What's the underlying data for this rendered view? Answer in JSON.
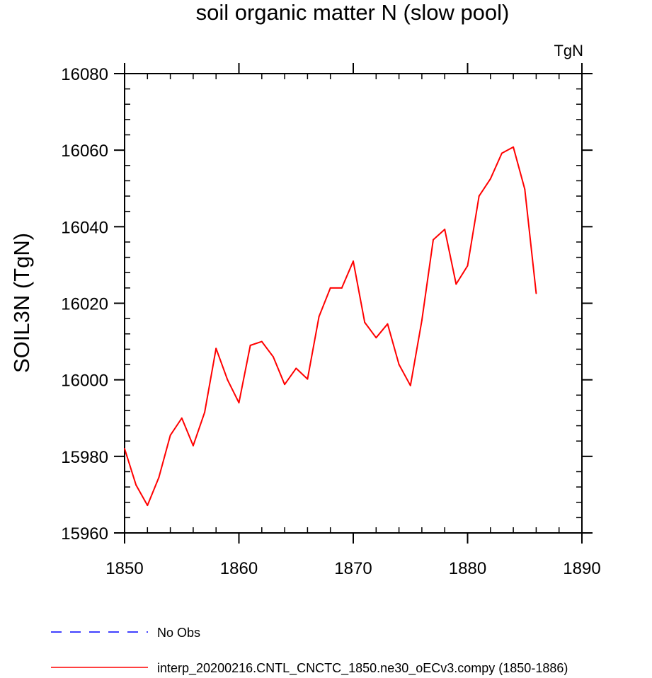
{
  "chart_data": {
    "type": "line",
    "title": "soil organic matter N (slow pool)",
    "units_label": "TgN",
    "ylabel": "SOIL3N  (TgN)",
    "xlabel": "",
    "xlim": [
      1850,
      1890
    ],
    "ylim": [
      15960,
      16080
    ],
    "x_ticks": [
      1850,
      1860,
      1870,
      1880,
      1890
    ],
    "y_ticks": [
      15960,
      15980,
      16000,
      16020,
      16040,
      16060,
      16080
    ],
    "x_tick_labels": [
      "1850",
      "1860",
      "1870",
      "1880",
      "1890"
    ],
    "y_tick_labels": [
      "15960",
      "15980",
      "16000",
      "16020",
      "16040",
      "16060",
      "16080"
    ],
    "grid": false,
    "legend_position": "bottom",
    "series": [
      {
        "name": "interp_20200216.CNTL_CNCTC_1850.ne30_oECv3.compy (1850-1886)",
        "color": "#ff0000",
        "style": "solid",
        "x": [
          1850,
          1851,
          1852,
          1853,
          1854,
          1855,
          1856,
          1857,
          1858,
          1859,
          1860,
          1861,
          1862,
          1863,
          1864,
          1865,
          1866,
          1867,
          1868,
          1869,
          1870,
          1871,
          1872,
          1873,
          1874,
          1875,
          1876,
          1877,
          1878,
          1879,
          1880,
          1881,
          1882,
          1883,
          1884,
          1885,
          1886
        ],
        "values": [
          15982,
          15972.5,
          15967.2,
          15974.5,
          15985.5,
          15990,
          15982.8,
          15991.5,
          16008.2,
          16000,
          15994,
          16009,
          16010,
          16006,
          15998.8,
          16003,
          16000.2,
          16016.5,
          16024,
          16024,
          16031,
          16015,
          16011,
          16014.6,
          16004,
          15998.5,
          16015.5,
          16036.6,
          16039.3,
          16025,
          16029.8,
          16048,
          16052.5,
          16059.2,
          16060.8,
          16049.8,
          16022.6
        ]
      }
    ],
    "legend": [
      {
        "label": "No Obs",
        "color": "#0000ff",
        "style": "dashed"
      },
      {
        "label": "interp_20200216.CNTL_CNCTC_1850.ne30_oECv3.compy (1850-1886)",
        "color": "#ff0000",
        "style": "solid"
      }
    ]
  }
}
